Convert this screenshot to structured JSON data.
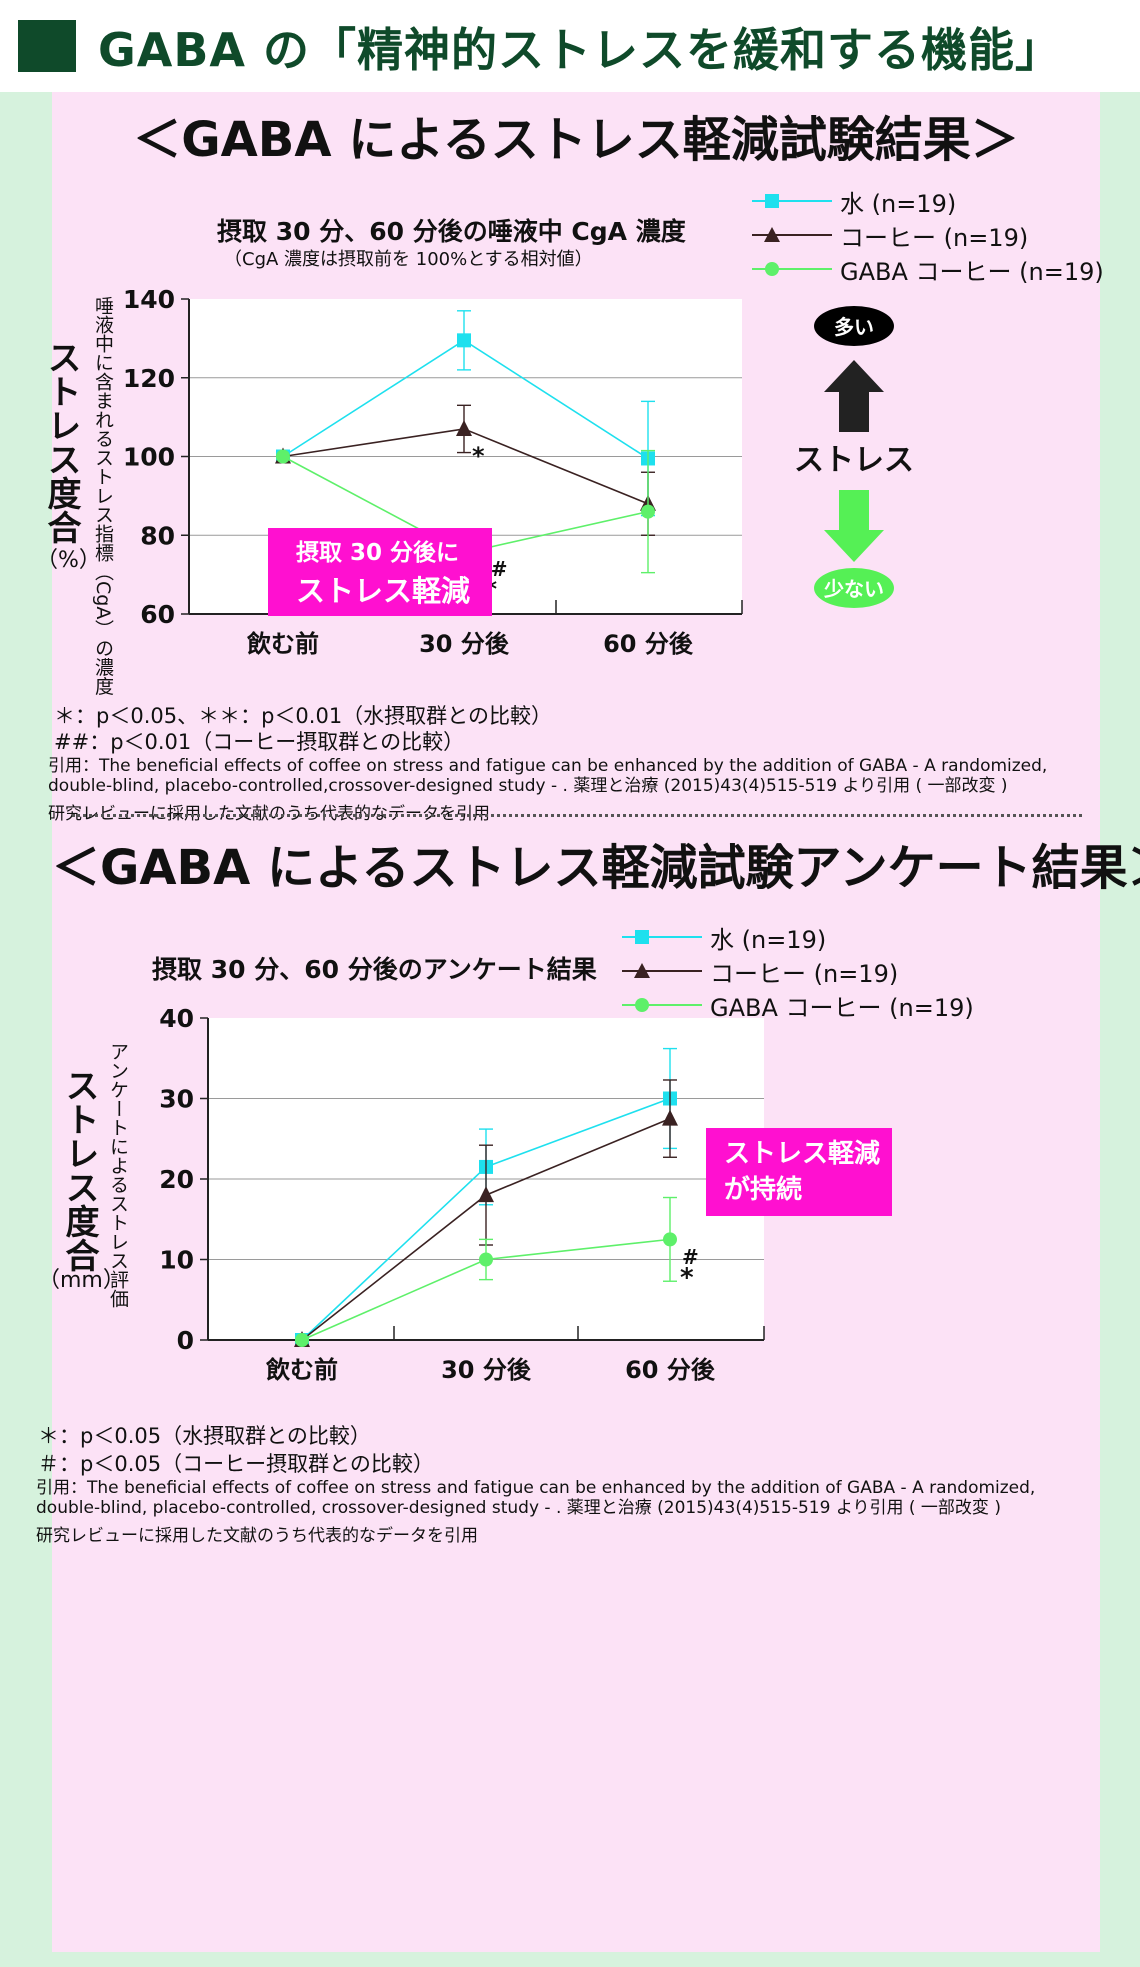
{
  "header": {
    "title": "GABA の「精神的ストレスを緩和する機能」"
  },
  "sections": [
    {
      "title": "＜GABA によるストレス軽減試験結果＞"
    },
    {
      "title": "＜GABA によるストレス軽減試験アンケート結果＞"
    }
  ],
  "chart_data": [
    {
      "type": "line",
      "title": "摂取 30 分、60 分後の唾液中 CgA 濃度",
      "subtitle": "（CgA 濃度は摂取前を 100%とする相対値）",
      "ylabel": "ストレス度合",
      "yunit": "（%）",
      "ylabel_sub": "唾液中に含まれるストレス指標（CgA）の濃度",
      "categories": [
        "飲む前",
        "30 分後",
        "60 分後"
      ],
      "yticks": [
        60,
        80,
        100,
        120,
        140
      ],
      "ylim": [
        60,
        140
      ],
      "grid": true,
      "legend_position": "top-right",
      "series": [
        {
          "name": "水 (n=19)",
          "marker": "square",
          "color": "#1ee0ee",
          "values": [
            100,
            129.5,
            99.5
          ],
          "error": [
            0,
            7.5,
            14.5
          ]
        },
        {
          "name": "コーヒー (n=19)",
          "marker": "triangle",
          "color": "#3a2222",
          "values": [
            100,
            107,
            88
          ],
          "error": [
            0,
            6,
            8
          ]
        },
        {
          "name": "GABA コーヒー (n=19)",
          "marker": "circle",
          "color": "#5ef06a",
          "values": [
            100,
            75.5,
            86
          ],
          "error": [
            0,
            4.5,
            15.5
          ]
        }
      ],
      "annotations": [
        "*",
        "##",
        "**"
      ],
      "callout": {
        "line1": "摂取 30 分後に",
        "line2": "ストレス軽減"
      },
      "side_indicator": {
        "top": "多い",
        "middle": "ストレス",
        "bottom": "少ない"
      },
      "notes": [
        "＊：p＜0.05、＊＊：p＜0.01（水摂取群との比較）",
        "##：p＜0.01（コーヒー摂取群との比較）"
      ],
      "citation": [
        "引用：The beneficial effects of coffee on stress and fatigue can be enhanced by the addition of GABA - A randomized,",
        "double-blind, placebo-controlled,crossover-designed study - . 薬理と治療 (2015)43(4)515-519 より引用 ( 一部改変 )"
      ],
      "source_note": "研究レビューに採用した文献のうち代表的なデータを引用"
    },
    {
      "type": "line",
      "title": "摂取 30 分、60 分後のアンケート結果",
      "ylabel": "ストレス度合",
      "yunit": "（mm）",
      "ylabel_sub": "アンケートによるストレス評価",
      "categories": [
        "飲む前",
        "30 分後",
        "60 分後"
      ],
      "yticks": [
        0,
        10,
        20,
        30,
        40
      ],
      "ylim": [
        0,
        40
      ],
      "grid": true,
      "legend_position": "top-right",
      "series": [
        {
          "name": "水 (n=19)",
          "marker": "square",
          "color": "#1ee0ee",
          "values": [
            0,
            21.5,
            30
          ],
          "error": [
            0,
            4.7,
            6.2
          ]
        },
        {
          "name": "コーヒー (n=19)",
          "marker": "triangle",
          "color": "#3a2222",
          "values": [
            0,
            18,
            27.5
          ],
          "error": [
            0,
            6.2,
            4.8
          ]
        },
        {
          "name": "GABA コーヒー (n=19)",
          "marker": "circle",
          "color": "#5ef06a",
          "values": [
            0,
            10,
            12.5
          ],
          "error": [
            0,
            2.5,
            5.2
          ]
        }
      ],
      "annotations": [
        "#",
        "*"
      ],
      "callout": {
        "line1": "ストレス軽減",
        "line2": "が持続"
      },
      "notes": [
        "＊：p＜0.05（水摂取群との比較）",
        "＃：p＜0.05（コーヒー摂取群との比較）"
      ],
      "citation": [
        "引用：The beneficial effects of coffee on stress and fatigue can be enhanced by the addition of GABA - A randomized,",
        "double-blind, placebo-controlled, crossover-designed study - . 薬理と治療 (2015)43(4)515-519 より引用 ( 一部改変 )"
      ],
      "source_note": "研究レビューに採用した文献のうち代表的なデータを引用"
    }
  ]
}
